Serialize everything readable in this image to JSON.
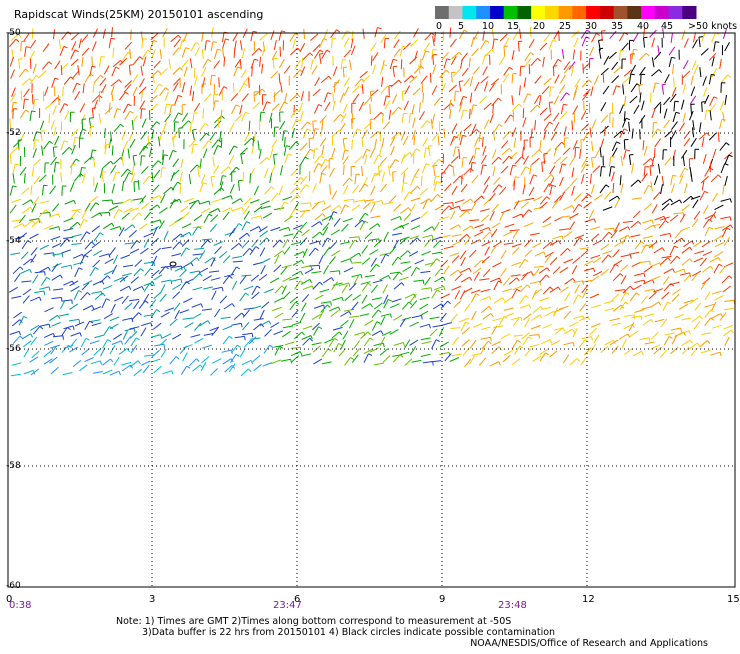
{
  "title": "Rapidscat Winds(25KM) 20150101 ascending",
  "colorbar": {
    "labels": [
      "0",
      "5",
      "10",
      "15",
      "20",
      "25",
      "30",
      "35",
      "40",
      "45",
      ">50 knots"
    ],
    "colors": [
      "#6e6e6e",
      "#c4c4c4",
      "#00e5ee",
      "#1e90ff",
      "#0000cd",
      "#00c000",
      "#006400",
      "#ffff00",
      "#ffd700",
      "#ff9900",
      "#ff6600",
      "#ff0000",
      "#cc0000",
      "#a0522d",
      "#5c3317",
      "#ff00ff",
      "#cc00cc",
      "#8a2be2",
      "#4b0082"
    ]
  },
  "lat_labels": [
    "-50",
    "-52",
    "-54",
    "-56",
    "-58",
    "-60"
  ],
  "lon_labels": [
    "0",
    "3",
    "6",
    "9",
    "12",
    "15"
  ],
  "times": [
    "0:38",
    "23:47",
    "23:48"
  ],
  "notes": [
    "Note: 1) Times are GMT 2)Times along bottom correspond to measurement at -50S",
    "3)Data buffer is 22 hrs from 20150101 4) Black circles indicate possible contamination"
  ],
  "credit": "NOAA/NESDIS/Office of Research and Applications",
  "map": {
    "lon_range": [
      0,
      15
    ],
    "lat_range": [
      -60,
      -50
    ],
    "grid": "dotted"
  }
}
